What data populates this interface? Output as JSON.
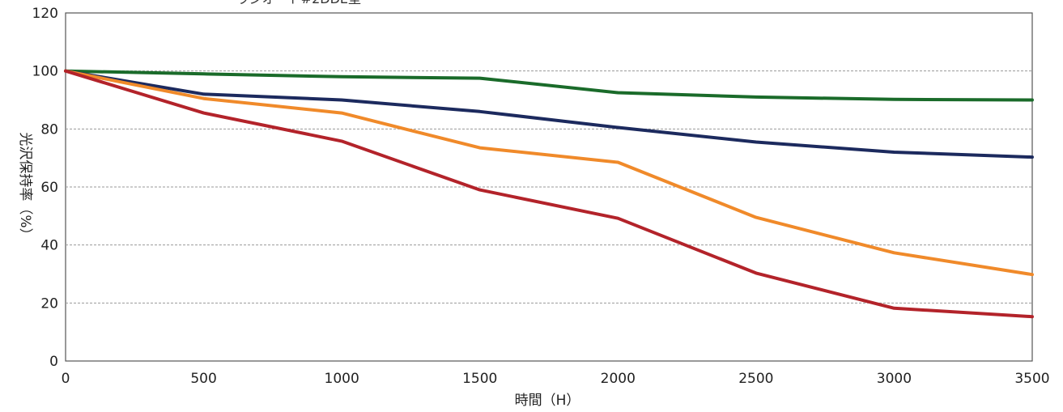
{
  "chart_data": {
    "type": "line",
    "title": "",
    "partial_top_text": "ラジオ・ト#2DDE型",
    "xlabel": "時間（H）",
    "ylabel": "光沢保持率（%）",
    "x": [
      0,
      500,
      1000,
      1500,
      2000,
      2500,
      3000,
      3500
    ],
    "xlim": [
      0,
      3500
    ],
    "ylim": [
      0,
      120
    ],
    "xticks": [
      0,
      500,
      1000,
      1500,
      2000,
      2500,
      3000,
      3500
    ],
    "yticks": [
      0,
      20,
      40,
      60,
      80,
      100,
      120
    ],
    "grid": true,
    "series": [
      {
        "color": "#1a6b2a",
        "values": [
          100,
          99,
          98,
          97.5,
          92.5,
          91,
          90.2,
          90
        ]
      },
      {
        "color": "#1c2a5e",
        "values": [
          100,
          92,
          90,
          86,
          80.5,
          75.5,
          72,
          70.3
        ]
      },
      {
        "color": "#f08a2a",
        "values": [
          100,
          90.5,
          85.5,
          73.5,
          68.5,
          49.5,
          37.3,
          29.8
        ]
      },
      {
        "color": "#b3232a",
        "values": [
          100,
          85.5,
          75.8,
          59,
          49.2,
          30.3,
          18.2,
          15.3
        ]
      }
    ]
  }
}
